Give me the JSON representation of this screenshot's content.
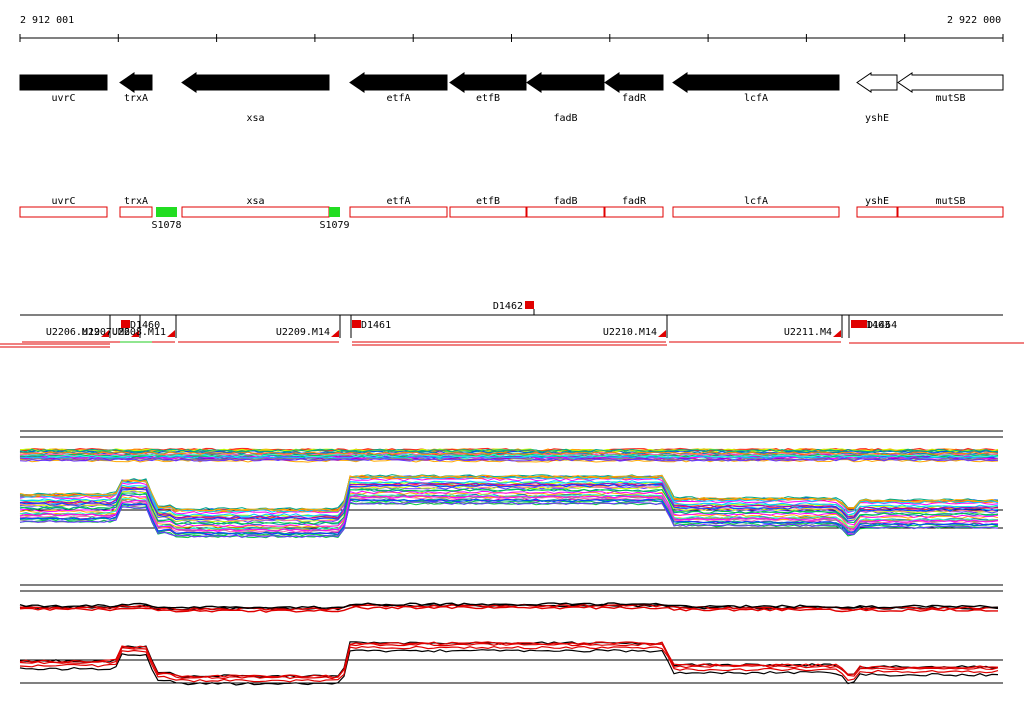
{
  "ruler": {
    "start_label": "2 912 001",
    "end_label": "2 922 000"
  },
  "genes": [
    {
      "name": "uvrC",
      "start": 20,
      "end": 107,
      "strand": "+",
      "filled": true,
      "label_row": 0
    },
    {
      "name": "trxA",
      "start": 120,
      "end": 152,
      "strand": "-",
      "filled": true,
      "label_row": 0
    },
    {
      "name": "xsa",
      "start": 182,
      "end": 329,
      "strand": "-",
      "filled": true,
      "label_row": 1
    },
    {
      "name": "etfA",
      "start": 350,
      "end": 447,
      "strand": "-",
      "filled": true,
      "label_row": 0
    },
    {
      "name": "etfB",
      "start": 450,
      "end": 526,
      "strand": "-",
      "filled": true,
      "label_row": 0
    },
    {
      "name": "fadB",
      "start": 527,
      "end": 604,
      "strand": "-",
      "filled": true,
      "label_row": 1
    },
    {
      "name": "fadR",
      "start": 605,
      "end": 663,
      "strand": "-",
      "filled": true,
      "label_row": 0
    },
    {
      "name": "lcfA",
      "start": 673,
      "end": 839,
      "strand": "-",
      "filled": true,
      "label_row": 0
    },
    {
      "name": "yshE",
      "start": 857,
      "end": 897,
      "strand": "-",
      "filled": false,
      "label_row": 1
    },
    {
      "name": "mutSB",
      "start": 898,
      "end": 1003,
      "strand": "-",
      "filled": false,
      "label_row": 0
    }
  ],
  "gene_boxes": [
    {
      "name": "uvrC",
      "start": 20,
      "end": 107
    },
    {
      "name": "trxA",
      "start": 120,
      "end": 152
    },
    {
      "name": "xsa",
      "start": 182,
      "end": 329
    },
    {
      "name": "etfA",
      "start": 350,
      "end": 447
    },
    {
      "name": "etfB",
      "start": 450,
      "end": 526
    },
    {
      "name": "fadB",
      "start": 527,
      "end": 604
    },
    {
      "name": "fadR",
      "start": 605,
      "end": 663
    },
    {
      "name": "lcfA",
      "start": 673,
      "end": 839
    },
    {
      "name": "yshE",
      "start": 857,
      "end": 897
    },
    {
      "name": "mutSB",
      "start": 898,
      "end": 1003
    }
  ],
  "sites": [
    {
      "name": "S1078",
      "start": 156,
      "end": 177
    },
    {
      "name": "S1079",
      "start": 329,
      "end": 340
    }
  ],
  "d_markers_top": [
    {
      "name": "D1462",
      "pos": 525
    }
  ],
  "segments": [
    {
      "name": "U2206.M19",
      "start": 20,
      "end": 110
    },
    {
      "name": "U2207.M6",
      "start": 95,
      "end": 140
    },
    {
      "name": "U2208.M11",
      "start": 140,
      "end": 176
    },
    {
      "name": "U2209.M14",
      "start": 176,
      "end": 340
    },
    {
      "name": "U2210.M14",
      "start": 350,
      "end": 667
    },
    {
      "name": "U2211.M4",
      "start": 667,
      "end": 842
    }
  ],
  "d_markers_segment": [
    {
      "name": "D1460",
      "pos": 121
    },
    {
      "name": "D1461",
      "pos": 352
    },
    {
      "name": "D1463",
      "pos": 851
    },
    {
      "name": "D1464",
      "pos": 858
    }
  ]
}
